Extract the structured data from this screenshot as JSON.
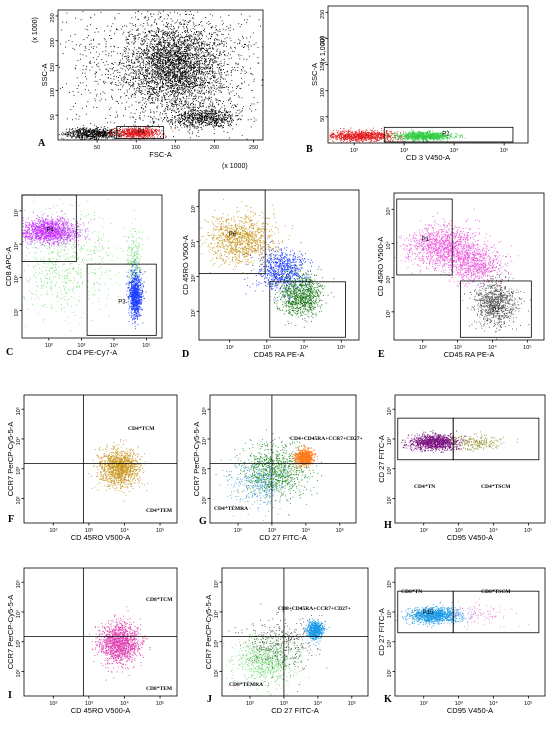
{
  "chart_data": [
    {
      "type": "scatter",
      "panel": "A",
      "xlabel": "FSC-A",
      "ylabel": "SSC-A",
      "x_unit_label": "(x 1000)",
      "y_unit_label": "(x 1000)",
      "x_scale": "linear",
      "y_scale": "linear",
      "xlim": [
        0,
        262
      ],
      "ylim": [
        0,
        262
      ],
      "x_ticks": [
        "50",
        "100",
        "150",
        "200",
        "250"
      ],
      "y_ticks": [
        "50",
        "100",
        "150",
        "200",
        "250"
      ],
      "gates": [
        {
          "label": "P1",
          "x": [
            75,
            135
          ],
          "y": [
            3,
            27
          ]
        }
      ],
      "series": [
        {
          "color": "#000000",
          "clusters": [
            {
              "cx": 150,
              "cy": 150,
              "sx": 28,
              "sy": 42,
              "n": 2600
            },
            {
              "cx": 140,
              "cy": 150,
              "sx": 65,
              "sy": 70,
              "n": 1600
            },
            {
              "cx": 185,
              "cy": 45,
              "sx": 22,
              "sy": 10,
              "n": 700
            },
            {
              "cx": 45,
              "cy": 14,
              "sx": 20,
              "sy": 6,
              "n": 700
            }
          ]
        },
        {
          "color": "#e31a1c",
          "clusters": [
            {
              "cx": 100,
              "cy": 15,
              "sx": 15,
              "sy": 5,
              "n": 650
            }
          ]
        }
      ]
    },
    {
      "type": "scatter",
      "panel": "B",
      "xlabel": "CD 3 V450-A",
      "ylabel": "SSC-A",
      "y_unit_label": "(x 1,000)",
      "x_scale": "log",
      "y_scale": "linear",
      "xlim": [
        30,
        300000
      ],
      "ylim": [
        0,
        262
      ],
      "x_ticks": [
        "10²",
        "10³",
        "10⁴",
        "10⁵"
      ],
      "y_ticks": [
        "50",
        "100",
        "150",
        "200",
        "250"
      ],
      "gates": [
        {
          "label": "P2",
          "x": [
            400,
            150000
          ],
          "y": [
            2,
            30
          ]
        }
      ],
      "series": [
        {
          "color": "#e31a1c",
          "clusters": [
            {
              "cx": 130,
              "cy": 14,
              "sx": 0.35,
              "sy": 5,
              "n": 950
            }
          ]
        },
        {
          "color": "#2ecc40",
          "clusters": [
            {
              "cx": 2500,
              "cy": 14,
              "sx": 0.28,
              "sy": 4,
              "n": 850
            }
          ]
        }
      ]
    },
    {
      "type": "scatter",
      "panel": "C",
      "xlabel": "CD4 PE-Cy7-A",
      "ylabel": "CD8 APC-A",
      "x_scale": "log",
      "y_scale": "log",
      "xlim": [
        15,
        300000
      ],
      "ylim": [
        15,
        300000
      ],
      "x_ticks": [
        "10²",
        "10³",
        "10⁴",
        "10⁵"
      ],
      "y_ticks": [
        "10²",
        "10³",
        "10⁴",
        "10⁵"
      ],
      "gates": [
        {
          "label": "P4",
          "x": [
            15,
            700
          ],
          "y": [
            3000,
            300000
          ]
        },
        {
          "label": "P3",
          "x": [
            1500,
            200000
          ],
          "y": [
            18,
            2500
          ]
        }
      ],
      "series": [
        {
          "color": "#cc33ff",
          "clusters": [
            {
              "cx": 100,
              "cy": 25000,
              "sx": 0.45,
              "sy": 0.18,
              "n": 1400
            }
          ]
        },
        {
          "color": "#7ee07e",
          "clusters": [
            {
              "cx": 300,
              "cy": 3000,
              "sx": 0.8,
              "sy": 0.8,
              "n": 650
            },
            {
              "cx": 40000,
              "cy": 3000,
              "sx": 0.12,
              "sy": 0.5,
              "n": 250
            }
          ]
        },
        {
          "color": "#1f3fff",
          "clusters": [
            {
              "cx": 45000,
              "cy": 300,
              "sx": 0.1,
              "sy": 0.35,
              "n": 900
            }
          ]
        }
      ]
    },
    {
      "type": "scatter",
      "panel": "D",
      "xlabel": "CD45 RA PE-A",
      "ylabel": "CD 45RO V500-A",
      "x_scale": "log",
      "y_scale": "log",
      "xlim": [
        15,
        300000
      ],
      "ylim": [
        15,
        300000
      ],
      "x_ticks": [
        "10²",
        "10³",
        "10⁴",
        "10⁵"
      ],
      "y_ticks": [
        "10²",
        "10³",
        "10⁴",
        "10⁵"
      ],
      "gates": [
        {
          "label": "P6",
          "x": [
            15,
            900
          ],
          "y": [
            1200,
            300000
          ]
        },
        {
          "label": "",
          "x": [
            1200,
            130000
          ],
          "y": [
            18,
            700
          ]
        }
      ],
      "series": [
        {
          "color": "#c8961e",
          "clusters": [
            {
              "cx": 200,
              "cy": 12000,
              "sx": 0.45,
              "sy": 0.35,
              "n": 1100
            }
          ]
        },
        {
          "color": "#1f3fff",
          "clusters": [
            {
              "cx": 2500,
              "cy": 1500,
              "sx": 0.35,
              "sy": 0.3,
              "n": 800
            }
          ]
        },
        {
          "color": "#1e7b1e",
          "clusters": [
            {
              "cx": 8000,
              "cy": 300,
              "sx": 0.3,
              "sy": 0.3,
              "n": 950
            }
          ]
        }
      ]
    },
    {
      "type": "scatter",
      "panel": "E",
      "xlabel": "CD45 RA PE-A",
      "ylabel": "CD 45RO V500-A",
      "x_scale": "log",
      "y_scale": "log",
      "xlim": [
        15,
        300000
      ],
      "ylim": [
        15,
        300000
      ],
      "x_ticks": [
        "10²",
        "10³",
        "10⁴",
        "10⁵"
      ],
      "y_ticks": [
        "10²",
        "10³",
        "10⁴",
        "10⁵"
      ],
      "gates": [
        {
          "label": "P1",
          "x": [
            18,
            700
          ],
          "y": [
            1200,
            200000
          ]
        },
        {
          "label": "P2",
          "x": [
            1200,
            130000
          ],
          "y": [
            18,
            800
          ]
        }
      ],
      "series": [
        {
          "color": "#ee55dd",
          "clusters": [
            {
              "cx": 400,
              "cy": 8000,
              "sx": 0.5,
              "sy": 0.3,
              "n": 1200
            },
            {
              "cx": 3000,
              "cy": 2500,
              "sx": 0.4,
              "sy": 0.3,
              "n": 700
            }
          ]
        },
        {
          "color": "#555555",
          "clusters": [
            {
              "cx": 12000,
              "cy": 200,
              "sx": 0.3,
              "sy": 0.35,
              "n": 900
            }
          ]
        }
      ]
    },
    {
      "type": "scatter",
      "panel": "F",
      "xlabel": "CD 45RO V500-A",
      "ylabel": "CCR7 PerCP-Cy5-5-A",
      "x_scale": "log",
      "y_scale": "log",
      "xlim": [
        15,
        300000
      ],
      "ylim": [
        15,
        300000
      ],
      "x_ticks": [
        "10²",
        "10³",
        "10⁴",
        "10⁵"
      ],
      "y_ticks": [
        "10²",
        "10³",
        "10⁴",
        "10⁵"
      ],
      "quadrant": {
        "x": 700,
        "y": 1500
      },
      "annotations": [
        "CD4⁺TCM",
        "CD4⁺TEM"
      ],
      "series": [
        {
          "color": "#c8961e",
          "clusters": [
            {
              "cx": 7000,
              "cy": 1100,
              "sx": 0.28,
              "sy": 0.3,
              "n": 1300
            }
          ]
        }
      ]
    },
    {
      "type": "scatter",
      "panel": "G",
      "xlabel": "CD 27 FITC-A",
      "ylabel": "CCR7 PerCP-Cy5-5-A",
      "x_scale": "log",
      "y_scale": "log",
      "xlim": [
        15,
        300000
      ],
      "ylim": [
        15,
        300000
      ],
      "x_ticks": [
        "10²",
        "10³",
        "10⁴",
        "10⁵"
      ],
      "y_ticks": [
        "10²",
        "10³",
        "10⁴",
        "10⁵"
      ],
      "quadrant": {
        "x": 1000,
        "y": 1500
      },
      "annotations": [
        "CD4+CD45RA+CCR7+CD27+",
        "CD4⁺TEMRA"
      ],
      "series": [
        {
          "color": "#2a8f2a",
          "clusters": [
            {
              "cx": 1200,
              "cy": 900,
              "sx": 0.5,
              "sy": 0.45,
              "n": 950
            }
          ]
        },
        {
          "color": "#5aa8e6",
          "clusters": [
            {
              "cx": 400,
              "cy": 300,
              "sx": 0.45,
              "sy": 0.4,
              "n": 350
            }
          ]
        },
        {
          "color": "#ff7b1c",
          "clusters": [
            {
              "cx": 9000,
              "cy": 2500,
              "sx": 0.13,
              "sy": 0.13,
              "n": 800
            }
          ]
        }
      ]
    },
    {
      "type": "scatter",
      "panel": "H",
      "xlabel": "CD95 V450-A",
      "ylabel": "CD 27 FITC-A",
      "x_scale": "log",
      "y_scale": "log",
      "xlim": [
        15,
        300000
      ],
      "ylim": [
        15,
        300000
      ],
      "x_ticks": [
        "10²",
        "10³",
        "10⁴",
        "10⁵"
      ],
      "y_ticks": [
        "10²",
        "10³",
        "10⁴",
        "10⁵"
      ],
      "gates": [
        {
          "label": "",
          "x": [
            18,
            700
          ],
          "y": [
            2000,
            50000
          ]
        },
        {
          "label": "",
          "x": [
            700,
            200000
          ],
          "y": [
            2000,
            50000
          ]
        }
      ],
      "annotations": [
        "CD4⁺TN",
        "CD4⁺TSCM"
      ],
      "series": [
        {
          "color": "#7a1480",
          "clusters": [
            {
              "cx": 200,
              "cy": 8000,
              "sx": 0.35,
              "sy": 0.13,
              "n": 1100
            }
          ]
        },
        {
          "color": "#9a9a3a",
          "clusters": [
            {
              "cx": 3000,
              "cy": 8000,
              "sx": 0.35,
              "sy": 0.13,
              "n": 220
            }
          ]
        }
      ]
    },
    {
      "type": "scatter",
      "panel": "I",
      "xlabel": "CD 45RO V500-A",
      "ylabel": "CCR7 PerCP-Cy5-5-A",
      "x_scale": "log",
      "y_scale": "log",
      "xlim": [
        15,
        300000
      ],
      "ylim": [
        15,
        300000
      ],
      "x_ticks": [
        "10²",
        "10³",
        "10⁴",
        "10⁵"
      ],
      "y_ticks": [
        "10²",
        "10³",
        "10⁴",
        "10⁵"
      ],
      "quadrant": {
        "x": 700,
        "y": 1500
      },
      "annotations": [
        "CD8⁺TCM",
        "CD8⁺TEM"
      ],
      "series": [
        {
          "color": "#e040b0",
          "clusters": [
            {
              "cx": 7000,
              "cy": 900,
              "sx": 0.28,
              "sy": 0.33,
              "n": 1400
            }
          ]
        }
      ]
    },
    {
      "type": "scatter",
      "panel": "J",
      "xlabel": "CD 27 FITC-A",
      "ylabel": "CCR7 PerCP-Cy5-5-A",
      "x_scale": "log",
      "y_scale": "log",
      "xlim": [
        15,
        300000
      ],
      "ylim": [
        15,
        300000
      ],
      "x_ticks": [
        "10²",
        "10³",
        "10⁴",
        "10⁵"
      ],
      "y_ticks": [
        "10²",
        "10³",
        "10⁴",
        "10⁵"
      ],
      "quadrant": {
        "x": 1000,
        "y": 1500
      },
      "annotations": [
        "CD8+CD45RA+CCR7+CD27+",
        "CD8⁺TEMRA"
      ],
      "series": [
        {
          "color": "#7ee07e",
          "clusters": [
            {
              "cx": 300,
              "cy": 250,
              "sx": 0.45,
              "sy": 0.4,
              "n": 800
            }
          ]
        },
        {
          "color": "#555555",
          "clusters": [
            {
              "cx": 700,
              "cy": 800,
              "sx": 0.5,
              "sy": 0.45,
              "n": 400
            }
          ]
        },
        {
          "color": "#1e9be6",
          "clusters": [
            {
              "cx": 8000,
              "cy": 2500,
              "sx": 0.12,
              "sy": 0.15,
              "n": 700
            }
          ]
        }
      ]
    },
    {
      "type": "scatter",
      "panel": "K",
      "xlabel": "CD95 V450-A",
      "ylabel": "CD 27 FITC-A",
      "x_scale": "log",
      "y_scale": "log",
      "xlim": [
        15,
        300000
      ],
      "ylim": [
        15,
        300000
      ],
      "x_ticks": [
        "10²",
        "10³",
        "10⁴",
        "10⁵"
      ],
      "y_ticks": [
        "10²",
        "10³",
        "10⁴",
        "10⁵"
      ],
      "gates": [
        {
          "label": "P15",
          "x": [
            18,
            700
          ],
          "y": [
            2000,
            50000
          ]
        },
        {
          "label": "",
          "x": [
            700,
            200000
          ],
          "y": [
            2000,
            50000
          ]
        }
      ],
      "annotations": [
        "CD8⁺TN",
        "CD8⁺TSCM"
      ],
      "series": [
        {
          "color": "#1e9be6",
          "clusters": [
            {
              "cx": 200,
              "cy": 8000,
              "sx": 0.35,
              "sy": 0.13,
              "n": 1100
            }
          ]
        },
        {
          "color": "#e890d8",
          "clusters": [
            {
              "cx": 4000,
              "cy": 8000,
              "sx": 0.45,
              "sy": 0.2,
              "n": 120
            }
          ]
        }
      ]
    }
  ]
}
